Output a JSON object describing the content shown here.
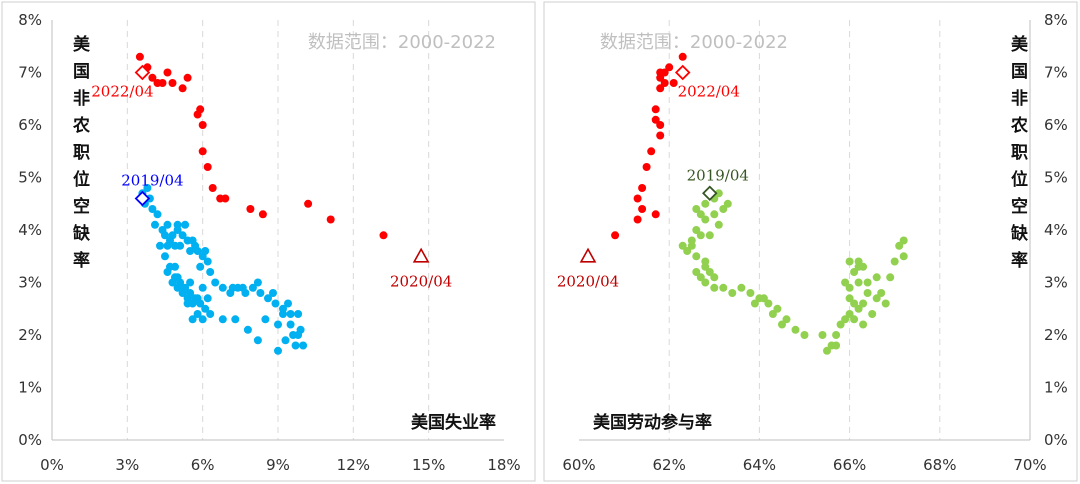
{
  "chart_data": [
    {
      "type": "scatter",
      "subtitle": "数据范围：2000-2022",
      "ylabel": "美国非农职位空缺率",
      "xlabel": "美国失业率",
      "xlim": [
        0,
        18
      ],
      "ylim": [
        0,
        8
      ],
      "xticks": [
        "0%",
        "3%",
        "6%",
        "9%",
        "12%",
        "15%",
        "18%"
      ],
      "yticks": [
        "0%",
        "1%",
        "2%",
        "3%",
        "4%",
        "5%",
        "6%",
        "7%",
        "8%"
      ],
      "yaxis_side": "left",
      "grid": true,
      "colors": {
        "pre": "#00b0f0",
        "post": "#ff0000"
      },
      "series": [
        {
          "points": [
            [
              3.6,
              4.7
            ],
            [
              3.8,
              4.8
            ],
            [
              3.9,
              4.6
            ],
            [
              3.7,
              4.5
            ],
            [
              4.0,
              4.4
            ],
            [
              4.2,
              4.3
            ],
            [
              4.1,
              4.1
            ],
            [
              4.4,
              4.0
            ],
            [
              4.6,
              4.1
            ],
            [
              4.8,
              3.9
            ],
            [
              5.0,
              4.0
            ],
            [
              5.2,
              3.9
            ],
            [
              5.4,
              3.8
            ],
            [
              5.6,
              3.8
            ],
            [
              5.8,
              3.6
            ],
            [
              6.0,
              3.5
            ],
            [
              6.2,
              3.4
            ],
            [
              4.5,
              3.9
            ],
            [
              4.7,
              3.8
            ],
            [
              5.1,
              3.7
            ],
            [
              5.5,
              3.6
            ],
            [
              5.9,
              3.3
            ],
            [
              4.3,
              3.7
            ],
            [
              4.9,
              3.7
            ],
            [
              5.3,
              4.1
            ],
            [
              5.0,
              4.1
            ],
            [
              4.6,
              3.7
            ],
            [
              5.7,
              3.7
            ],
            [
              6.1,
              3.6
            ],
            [
              6.3,
              3.2
            ],
            [
              4.5,
              3.5
            ],
            [
              4.7,
              3.3
            ],
            [
              4.9,
              3.1
            ],
            [
              5.1,
              3.0
            ],
            [
              5.3,
              2.9
            ],
            [
              5.5,
              2.8
            ],
            [
              5.7,
              2.7
            ],
            [
              5.9,
              2.6
            ],
            [
              6.1,
              2.5
            ],
            [
              6.3,
              2.4
            ],
            [
              4.6,
              3.2
            ],
            [
              4.8,
              3.0
            ],
            [
              5.0,
              2.9
            ],
            [
              5.2,
              2.8
            ],
            [
              5.4,
              2.7
            ],
            [
              5.6,
              2.6
            ],
            [
              5.8,
              2.4
            ],
            [
              6.0,
              2.3
            ],
            [
              5.0,
              3.1
            ],
            [
              5.2,
              2.9
            ],
            [
              5.4,
              2.6
            ],
            [
              5.8,
              2.7
            ],
            [
              6.0,
              2.9
            ],
            [
              6.2,
              2.7
            ],
            [
              5.6,
              2.3
            ],
            [
              4.9,
              3.3
            ],
            [
              5.5,
              3.0
            ],
            [
              6.5,
              3.0
            ],
            [
              6.8,
              2.9
            ],
            [
              7.1,
              2.8
            ],
            [
              7.4,
              2.9
            ],
            [
              7.7,
              2.8
            ],
            [
              8.0,
              2.9
            ],
            [
              8.3,
              2.8
            ],
            [
              8.6,
              2.7
            ],
            [
              8.9,
              2.6
            ],
            [
              9.2,
              2.5
            ],
            [
              9.5,
              2.4
            ],
            [
              9.8,
              2.4
            ],
            [
              7.6,
              2.9
            ],
            [
              8.2,
              3.0
            ],
            [
              8.8,
              2.8
            ],
            [
              9.4,
              2.6
            ],
            [
              7.2,
              2.9
            ],
            [
              9.9,
              2.1
            ],
            [
              9.6,
              2.0
            ],
            [
              9.3,
              1.9
            ],
            [
              9.0,
              1.7
            ],
            [
              8.2,
              1.9
            ],
            [
              7.8,
              2.1
            ],
            [
              8.5,
              2.3
            ],
            [
              9.7,
              1.8
            ],
            [
              10.0,
              1.8
            ],
            [
              6.8,
              2.3
            ],
            [
              7.3,
              2.3
            ],
            [
              9.0,
              2.2
            ],
            [
              9.5,
              2.2
            ],
            [
              9.2,
              2.4
            ],
            [
              9.8,
              2.0
            ]
          ]
        },
        {
          "points": [
            [
              3.5,
              7.3
            ],
            [
              3.8,
              7.1
            ],
            [
              4.0,
              6.9
            ],
            [
              4.2,
              6.8
            ],
            [
              4.6,
              7.0
            ],
            [
              4.8,
              6.8
            ],
            [
              5.2,
              6.7
            ],
            [
              5.4,
              6.9
            ],
            [
              3.6,
              7.0
            ],
            [
              4.4,
              6.8
            ],
            [
              5.8,
              6.2
            ],
            [
              5.9,
              6.3
            ],
            [
              6.0,
              6.0
            ],
            [
              6.0,
              5.5
            ],
            [
              6.2,
              5.2
            ],
            [
              6.4,
              4.8
            ],
            [
              6.7,
              4.6
            ],
            [
              6.9,
              4.6
            ],
            [
              7.9,
              4.4
            ],
            [
              8.4,
              4.3
            ],
            [
              10.2,
              4.5
            ],
            [
              11.1,
              4.2
            ],
            [
              13.2,
              3.9
            ]
          ]
        }
      ],
      "annotations": [
        {
          "label": "2022/04",
          "x": 3.6,
          "y": 7.0,
          "marker": "diamond",
          "color": "#ff0000"
        },
        {
          "label": "2019/04",
          "x": 3.6,
          "y": 4.6,
          "marker": "diamond",
          "color": "#0000ff"
        },
        {
          "label": "2020/04",
          "x": 14.7,
          "y": 3.5,
          "marker": "triangle",
          "color": "#c00000"
        }
      ]
    },
    {
      "type": "scatter",
      "subtitle": "数据范围：2000-2022",
      "ylabel": "美国非农职位空缺率",
      "xlabel": "美国劳动参与率",
      "xlim": [
        60,
        70
      ],
      "ylim": [
        0,
        8
      ],
      "xticks": [
        "60%",
        "62%",
        "64%",
        "66%",
        "68%",
        "70%"
      ],
      "yticks": [
        "0%",
        "1%",
        "2%",
        "3%",
        "4%",
        "5%",
        "6%",
        "7%",
        "8%"
      ],
      "yaxis_side": "right",
      "grid": true,
      "colors": {
        "pre": "#92d050",
        "post": "#ff0000"
      },
      "series": [
        {
          "points": [
            [
              62.5,
              3.8
            ],
            [
              62.6,
              4.0
            ],
            [
              62.7,
              4.3
            ],
            [
              62.8,
              4.5
            ],
            [
              62.9,
              4.7
            ],
            [
              63.0,
              4.6
            ],
            [
              63.1,
              4.7
            ],
            [
              63.2,
              4.4
            ],
            [
              63.3,
              4.5
            ],
            [
              62.6,
              4.4
            ],
            [
              62.8,
              4.2
            ],
            [
              62.7,
              3.9
            ],
            [
              62.5,
              3.7
            ],
            [
              62.4,
              3.6
            ],
            [
              62.6,
              3.5
            ],
            [
              62.8,
              3.3
            ],
            [
              62.9,
              3.2
            ],
            [
              63.0,
              3.1
            ],
            [
              62.7,
              3.1
            ],
            [
              62.8,
              3.4
            ],
            [
              62.9,
              3.9
            ],
            [
              63.1,
              4.1
            ],
            [
              62.3,
              3.7
            ],
            [
              62.6,
              3.2
            ],
            [
              63.0,
              4.3
            ],
            [
              62.8,
              3.0
            ],
            [
              63.0,
              2.9
            ],
            [
              63.2,
              2.9
            ],
            [
              63.4,
              2.8
            ],
            [
              63.6,
              2.9
            ],
            [
              63.8,
              2.8
            ],
            [
              64.0,
              2.7
            ],
            [
              64.2,
              2.6
            ],
            [
              64.4,
              2.5
            ],
            [
              64.6,
              2.3
            ],
            [
              64.8,
              2.1
            ],
            [
              65.0,
              2.0
            ],
            [
              64.5,
              2.2
            ],
            [
              64.3,
              2.4
            ],
            [
              63.9,
              2.6
            ],
            [
              65.4,
              2.0
            ],
            [
              65.6,
              1.8
            ],
            [
              65.7,
              1.8
            ],
            [
              65.5,
              1.7
            ],
            [
              65.8,
              2.2
            ],
            [
              66.0,
              2.4
            ],
            [
              66.1,
              2.6
            ],
            [
              66.0,
              2.9
            ],
            [
              66.1,
              3.2
            ],
            [
              66.2,
              3.4
            ],
            [
              66.3,
              3.3
            ],
            [
              65.9,
              3.0
            ],
            [
              66.0,
              2.7
            ],
            [
              66.2,
              2.5
            ],
            [
              66.3,
              2.6
            ],
            [
              66.4,
              2.8
            ],
            [
              66.2,
              3.0
            ],
            [
              66.1,
              2.3
            ],
            [
              65.9,
              2.3
            ],
            [
              66.4,
              3.0
            ],
            [
              66.6,
              2.7
            ],
            [
              66.8,
              2.6
            ],
            [
              66.7,
              2.8
            ],
            [
              66.9,
              3.1
            ],
            [
              67.0,
              3.4
            ],
            [
              67.1,
              3.7
            ],
            [
              67.2,
              3.8
            ],
            [
              67.2,
              3.5
            ],
            [
              66.6,
              3.1
            ],
            [
              66.5,
              2.4
            ],
            [
              66.3,
              2.2
            ],
            [
              66.0,
              3.4
            ],
            [
              66.2,
              3.3
            ],
            [
              65.7,
              2.0
            ],
            [
              64.1,
              2.7
            ]
          ]
        },
        {
          "points": [
            [
              62.3,
              7.3
            ],
            [
              62.0,
              7.1
            ],
            [
              61.8,
              7.0
            ],
            [
              61.8,
              6.9
            ],
            [
              61.9,
              6.8
            ],
            [
              61.8,
              6.7
            ],
            [
              61.7,
              6.3
            ],
            [
              61.7,
              6.1
            ],
            [
              61.8,
              6.0
            ],
            [
              61.8,
              5.8
            ],
            [
              61.6,
              5.5
            ],
            [
              61.5,
              5.2
            ],
            [
              61.4,
              4.8
            ],
            [
              61.3,
              4.6
            ],
            [
              61.4,
              4.4
            ],
            [
              61.3,
              4.2
            ],
            [
              61.7,
              4.3
            ],
            [
              60.8,
              3.9
            ],
            [
              62.1,
              6.8
            ],
            [
              61.9,
              7.0
            ]
          ]
        }
      ],
      "annotations": [
        {
          "label": "2022/04",
          "x": 62.3,
          "y": 7.0,
          "marker": "diamond",
          "color": "#ff0000"
        },
        {
          "label": "2019/04",
          "x": 62.9,
          "y": 4.7,
          "marker": "diamond",
          "color": "#375623"
        },
        {
          "label": "2020/04",
          "x": 60.2,
          "y": 3.5,
          "marker": "triangle",
          "color": "#c00000"
        }
      ]
    }
  ]
}
